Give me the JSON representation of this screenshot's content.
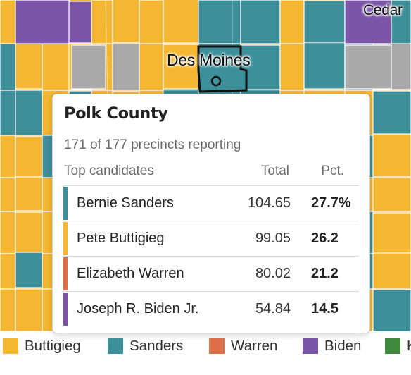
{
  "colors": {
    "buttigieg": "#f5b731",
    "sanders": "#3d8f9a",
    "warren": "#dc6f48",
    "biden": "#7c55a8",
    "klobuchar": "#3f8a3c",
    "no_data": "#a9a9a9",
    "county_border": "#ffffff"
  },
  "map": {
    "cities": [
      {
        "key": "cedar",
        "label": "Cedar"
      },
      {
        "key": "des_moines",
        "label": "Des Moines"
      }
    ]
  },
  "tooltip": {
    "county": "Polk County",
    "reporting": "171 of 177 precincts reporting",
    "headers": {
      "candidates": "Top candidates",
      "total": "Total",
      "pct": "Pct."
    },
    "rows": [
      {
        "name": "Bernie Sanders",
        "total": "104.65",
        "pct": "27.7%",
        "color_key": "sanders"
      },
      {
        "name": "Pete Buttigieg",
        "total": "99.05",
        "pct": "26.2",
        "color_key": "buttigieg"
      },
      {
        "name": "Elizabeth Warren",
        "total": "80.02",
        "pct": "21.2",
        "color_key": "warren"
      },
      {
        "name": "Joseph R. Biden Jr.",
        "total": "54.84",
        "pct": "14.5",
        "color_key": "biden"
      }
    ]
  },
  "legend": [
    {
      "label": "Buttigieg",
      "color_key": "buttigieg"
    },
    {
      "label": "Sanders",
      "color_key": "sanders"
    },
    {
      "label": "Warren",
      "color_key": "warren"
    },
    {
      "label": "Biden",
      "color_key": "biden"
    },
    {
      "label": "K",
      "color_key": "klobuchar"
    }
  ]
}
